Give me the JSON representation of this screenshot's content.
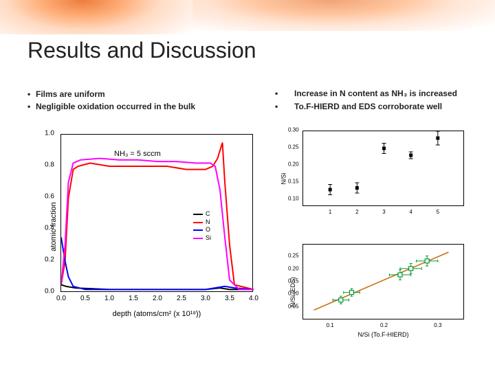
{
  "title": "Results and Discussion",
  "left_bullets": [
    "Films are uniform",
    "Negligible oxidation occurred in the bulk"
  ],
  "right_bullets": [
    "Increase in N content as NH₃ is increased",
    "To.F-HIERD and EDS corroborate well"
  ],
  "left_chart": {
    "type": "line",
    "inset_label": "NH₃ = 5 sccm",
    "xlabel": "depth (atoms/cm² (x 10¹⁸))",
    "ylabel": "atomic fraction",
    "xlim": [
      0,
      4.0
    ],
    "ylim": [
      0,
      1.0
    ],
    "xticks": [
      0.0,
      0.5,
      1.0,
      1.5,
      2.0,
      2.5,
      3.0,
      3.5,
      4.0
    ],
    "yticks": [
      0.0,
      0.2,
      0.4,
      0.6,
      0.8,
      1.0
    ],
    "background_color": "#ffffff",
    "border_color": "#000000",
    "line_width": 2,
    "series": [
      {
        "name": "C",
        "color": "#000000",
        "data": [
          [
            0.0,
            0.05
          ],
          [
            0.1,
            0.04
          ],
          [
            0.3,
            0.03
          ],
          [
            1.0,
            0.02
          ],
          [
            2.0,
            0.02
          ],
          [
            3.0,
            0.02
          ],
          [
            3.3,
            0.03
          ],
          [
            3.5,
            0.02
          ],
          [
            4.0,
            0.02
          ]
        ]
      },
      {
        "name": "N",
        "color": "#ff0000",
        "data": [
          [
            0.0,
            0.05
          ],
          [
            0.08,
            0.2
          ],
          [
            0.15,
            0.6
          ],
          [
            0.25,
            0.78
          ],
          [
            0.35,
            0.8
          ],
          [
            0.6,
            0.82
          ],
          [
            1.0,
            0.8
          ],
          [
            1.4,
            0.8
          ],
          [
            1.8,
            0.8
          ],
          [
            2.2,
            0.8
          ],
          [
            2.6,
            0.78
          ],
          [
            3.0,
            0.78
          ],
          [
            3.15,
            0.8
          ],
          [
            3.25,
            0.85
          ],
          [
            3.35,
            0.95
          ],
          [
            3.4,
            0.7
          ],
          [
            3.5,
            0.3
          ],
          [
            3.6,
            0.05
          ],
          [
            4.0,
            0.02
          ]
        ]
      },
      {
        "name": "O",
        "color": "#0000ff",
        "data": [
          [
            0.0,
            0.35
          ],
          [
            0.08,
            0.2
          ],
          [
            0.15,
            0.1
          ],
          [
            0.25,
            0.04
          ],
          [
            0.5,
            0.02
          ],
          [
            1.0,
            0.02
          ],
          [
            2.0,
            0.02
          ],
          [
            3.0,
            0.02
          ],
          [
            3.4,
            0.04
          ],
          [
            3.6,
            0.03
          ],
          [
            4.0,
            0.02
          ]
        ]
      },
      {
        "name": "Si",
        "color": "#ff00ff",
        "data": [
          [
            0.0,
            0.05
          ],
          [
            0.08,
            0.3
          ],
          [
            0.15,
            0.7
          ],
          [
            0.25,
            0.82
          ],
          [
            0.4,
            0.84
          ],
          [
            0.8,
            0.85
          ],
          [
            1.2,
            0.84
          ],
          [
            1.6,
            0.84
          ],
          [
            2.0,
            0.83
          ],
          [
            2.4,
            0.83
          ],
          [
            2.8,
            0.82
          ],
          [
            3.1,
            0.82
          ],
          [
            3.2,
            0.8
          ],
          [
            3.3,
            0.65
          ],
          [
            3.4,
            0.35
          ],
          [
            3.5,
            0.08
          ],
          [
            3.7,
            0.02
          ],
          [
            4.0,
            0.02
          ]
        ]
      }
    ],
    "legend_position": "right-middle",
    "label_fontsize": 11,
    "tick_fontsize": 10
  },
  "right_top_chart": {
    "type": "scatter-errorbar",
    "ylabel": "N/Si",
    "xlabel": "",
    "xlim": [
      0,
      6
    ],
    "ylim": [
      0.08,
      0.3
    ],
    "xticks": [
      1,
      2,
      3,
      4,
      5
    ],
    "yticks": [
      0.1,
      0.15,
      0.2,
      0.25,
      0.3
    ],
    "marker": "square",
    "marker_color": "#000000",
    "marker_size": 5,
    "error_color": "#000000",
    "data": [
      {
        "x": 1,
        "y": 0.13,
        "err": 0.015
      },
      {
        "x": 2,
        "y": 0.135,
        "err": 0.015
      },
      {
        "x": 3,
        "y": 0.25,
        "err": 0.015
      },
      {
        "x": 4,
        "y": 0.23,
        "err": 0.01
      },
      {
        "x": 5,
        "y": 0.28,
        "err": 0.02
      }
    ],
    "background_color": "#ffffff",
    "label_fontsize": 9,
    "tick_fontsize": 8
  },
  "right_bot_chart": {
    "type": "scatter-errorbar-line",
    "ylabel": "N/Si (EDS)",
    "xlabel": "N/Si (To.F-HIERD)",
    "xlim": [
      0.05,
      0.35
    ],
    "ylim": [
      0.0,
      0.3
    ],
    "xticks": [
      0.1,
      0.2,
      0.3
    ],
    "yticks": [
      0.05,
      0.1,
      0.15,
      0.2,
      0.25
    ],
    "marker": "square-open",
    "marker_color": "#009933",
    "marker_size": 6,
    "error_color": "#009933",
    "fit_line_color": "#cc6600",
    "fit_line": [
      [
        0.07,
        0.04
      ],
      [
        0.32,
        0.27
      ]
    ],
    "data": [
      {
        "x": 0.12,
        "y": 0.08,
        "ex": 0.015,
        "ey": 0.015
      },
      {
        "x": 0.14,
        "y": 0.11,
        "ex": 0.015,
        "ey": 0.015
      },
      {
        "x": 0.23,
        "y": 0.18,
        "ex": 0.02,
        "ey": 0.02
      },
      {
        "x": 0.25,
        "y": 0.205,
        "ex": 0.02,
        "ey": 0.02
      },
      {
        "x": 0.28,
        "y": 0.235,
        "ex": 0.02,
        "ey": 0.02
      }
    ],
    "background_color": "#ffffff",
    "label_fontsize": 9,
    "tick_fontsize": 8
  }
}
